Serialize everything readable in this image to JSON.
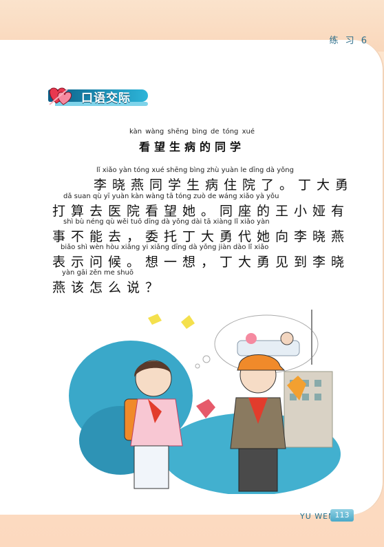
{
  "header": {
    "section_label": "练 习 6"
  },
  "section": {
    "title": "口语交际"
  },
  "lesson": {
    "title_pinyin": "kàn wàng shēng bìng de tóng xué",
    "title": "看望生病的同学",
    "lines": [
      {
        "pinyin": "lǐ xiǎo yàn tóng xué shēng bìng zhù yuàn le dīng dà yǒng",
        "text": "李晓燕同学生病住院了。丁大勇"
      },
      {
        "pinyin": "dǎ suan qù yī yuàn kàn wàng tā tóng zuò de wáng xiǎo yà yǒu",
        "text": "打算去医院看望她。同座的王小娅有"
      },
      {
        "pinyin": "shì bù néng qù wěi tuō dīng dà yǒng dài tā xiàng lǐ xiǎo yàn",
        "text": "事不能去，委托丁大勇代她向李晓燕"
      },
      {
        "pinyin": "biǎo shì wèn hòu xiǎng yi xiǎng dīng dà yǒng jiàn dào lǐ xiǎo",
        "text": "表示问候。想一想，丁大勇见到李晓"
      },
      {
        "pinyin": "yàn gāi zěn me shuō",
        "text": "燕该怎么说？"
      }
    ]
  },
  "footer": {
    "label": "YU WEN",
    "page_number": "113"
  },
  "colors": {
    "banner": "#0a5e86",
    "accent_blue": "#2db5d9",
    "page_tint": "#fbe3cc"
  }
}
